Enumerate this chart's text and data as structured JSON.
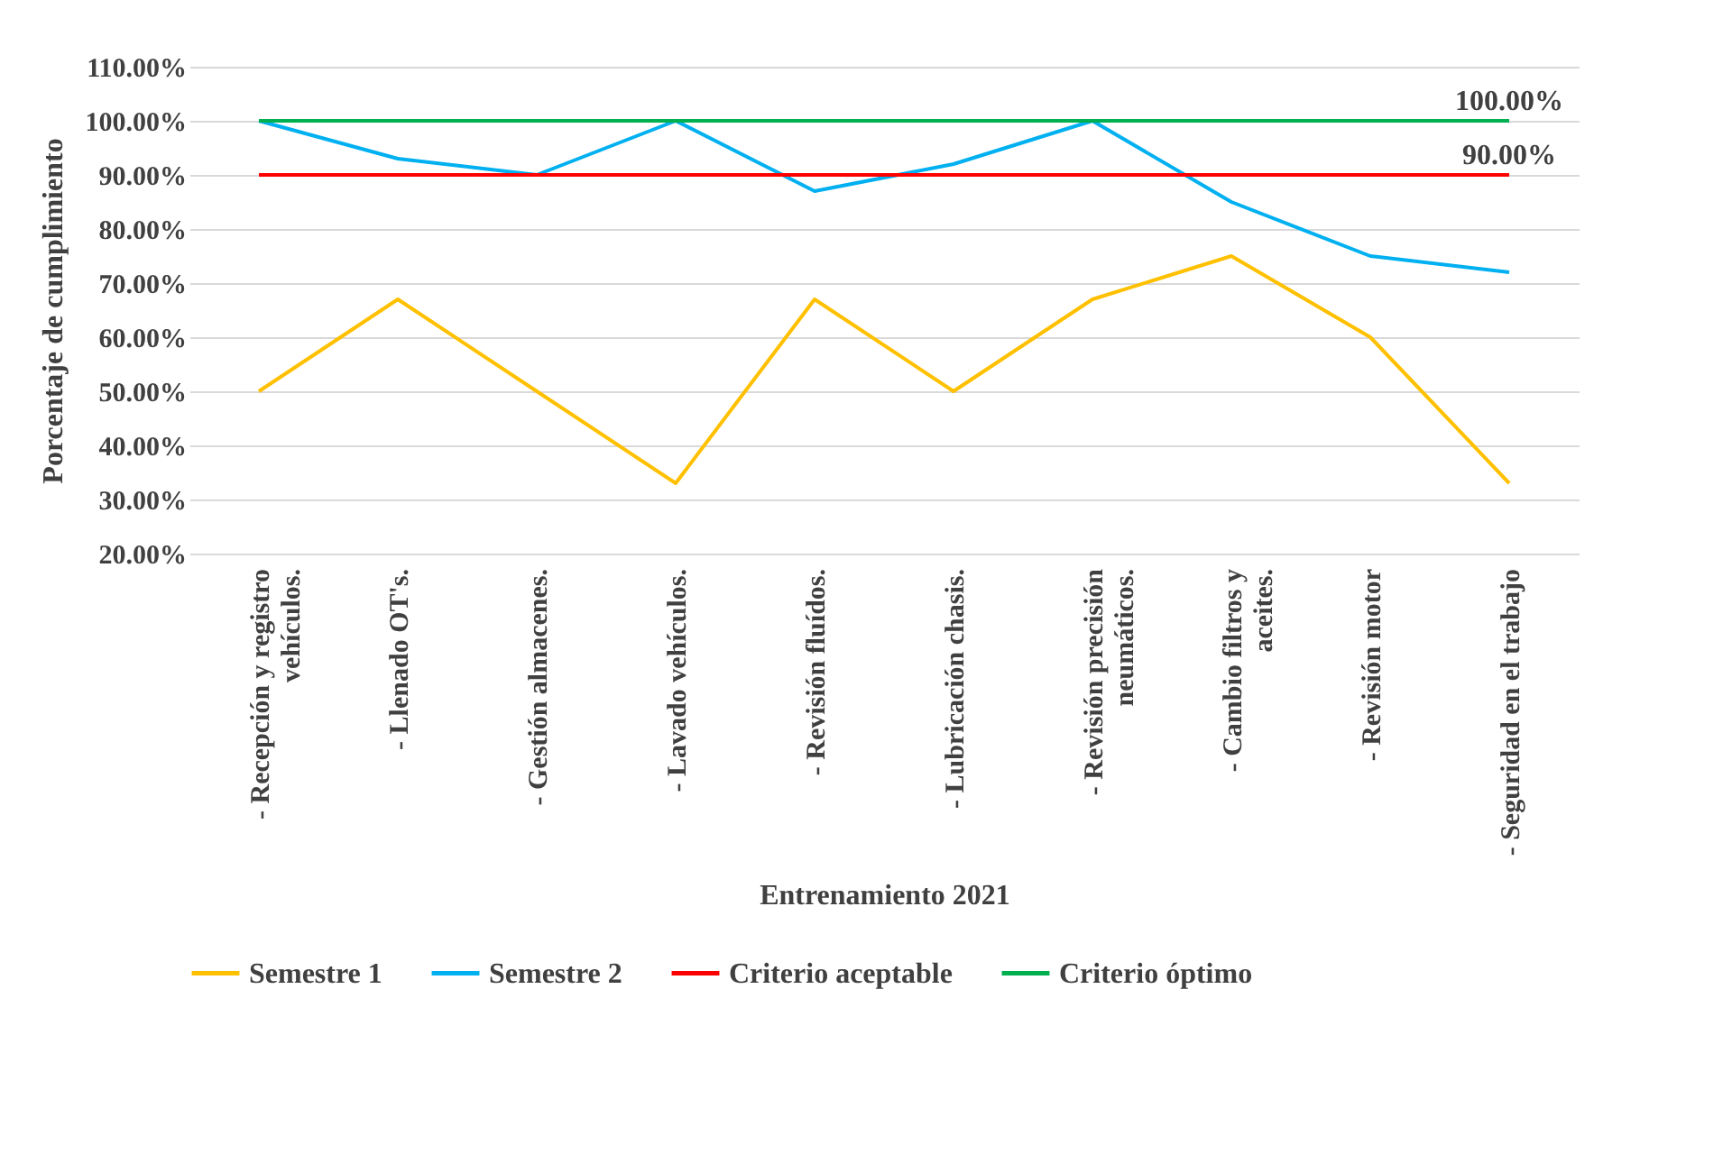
{
  "chart_data": {
    "type": "line",
    "xlabel": "Entrenamiento 2021",
    "ylabel": "Porcentaje de cumplimiento",
    "categories": [
      "- Recepción y registro vehículos.",
      "- Llenado OT's.",
      "- Gestión almacenes.",
      "- Lavado vehículos.",
      "- Revisión fluídos.",
      "- Lubricación chasis.",
      "- Revisión precisión neumáticos.",
      "- Cambio filtros y aceites.",
      "- Revisión motor",
      "- Seguridad en el trabajo"
    ],
    "series": [
      {
        "name": "Semestre 1",
        "color": "#ffc000",
        "values": [
          50,
          67,
          50,
          33,
          67,
          50,
          67,
          75,
          60,
          33
        ]
      },
      {
        "name": "Semestre 2",
        "color": "#00b0f0",
        "values": [
          100,
          93,
          90,
          100,
          87,
          92,
          100,
          85,
          75,
          72
        ]
      },
      {
        "name": "Criterio aceptable",
        "color": "#ff0000",
        "values": [
          90,
          90,
          90,
          90,
          90,
          90,
          90,
          90,
          90,
          90
        ],
        "value_labels": [
          null,
          null,
          null,
          null,
          null,
          null,
          null,
          null,
          null,
          "90.00%"
        ]
      },
      {
        "name": "Criterio óptimo",
        "color": "#00b050",
        "values": [
          100,
          100,
          100,
          100,
          100,
          100,
          100,
          100,
          100,
          100
        ],
        "value_labels": [
          null,
          null,
          null,
          null,
          null,
          null,
          null,
          null,
          null,
          "100.00%"
        ]
      }
    ],
    "ylim": [
      20,
      110
    ],
    "yticks": [
      {
        "value": 20,
        "label": "20.00%"
      },
      {
        "value": 30,
        "label": "30.00%"
      },
      {
        "value": 40,
        "label": "40.00%"
      },
      {
        "value": 50,
        "label": "50.00%"
      },
      {
        "value": 60,
        "label": "60.00%"
      },
      {
        "value": 70,
        "label": "70.00%"
      },
      {
        "value": 80,
        "label": "80.00%"
      },
      {
        "value": 90,
        "label": "90.00%"
      },
      {
        "value": 100,
        "label": "100.00%"
      },
      {
        "value": 110,
        "label": "110.00%"
      }
    ],
    "grid": "y",
    "legend": "bottom"
  }
}
